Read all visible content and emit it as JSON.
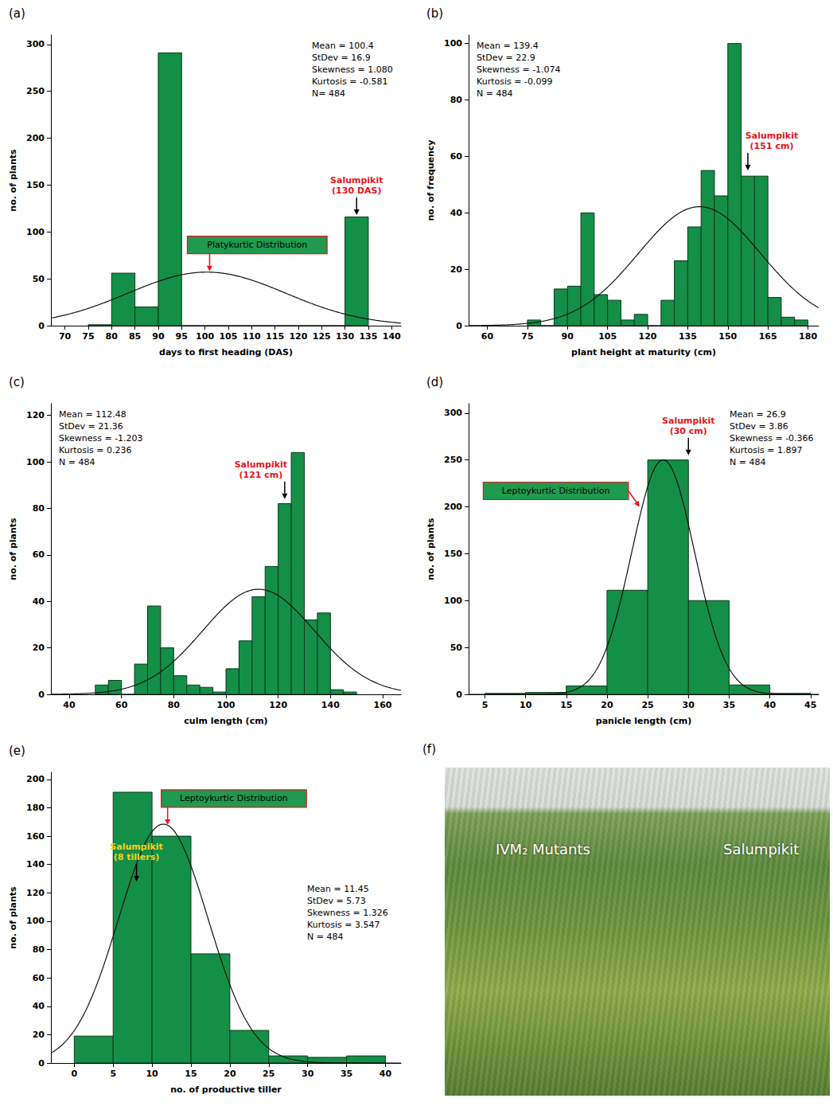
{
  "chart_data": [
    {
      "type": "histogram",
      "title": "(a)",
      "x_label": "days to first heading (DAS)",
      "y_label": "no. of plants",
      "bins": [
        75,
        80,
        85,
        90,
        95,
        100,
        105,
        110,
        115,
        120,
        125,
        130,
        135
      ],
      "values": [
        1,
        56,
        20,
        291,
        0,
        0,
        0,
        0,
        0,
        0,
        0,
        116
      ],
      "color": "#148f47",
      "xlim": [
        67,
        142
      ],
      "xticks": [
        70,
        75,
        80,
        85,
        90,
        95,
        100,
        105,
        110,
        115,
        120,
        125,
        130,
        135,
        140
      ],
      "ylim": [
        0,
        310
      ],
      "yticks": [
        0,
        50,
        100,
        150,
        200,
        250,
        300
      ],
      "stats": {
        "mean": {
          "value": 100.4,
          "label": "Mean = 100.4"
        },
        "stdev": {
          "value": 16.9,
          "label": "StDev = 16.9"
        },
        "skewness": {
          "value": 1.08,
          "label": "Skewness = 1.080"
        },
        "kurtosis": {
          "value": -0.581,
          "label": "Kurtosis = -0.581"
        },
        "n": {
          "value": 484,
          "label": "N= 484"
        }
      },
      "annotations": [
        {
          "text": "Platykurtic Distribution",
          "x": 101,
          "y": 58,
          "marker": "box",
          "color": "#e8141c"
        },
        {
          "text": "Salumpikit\n(130 DAS)",
          "x": 132.5,
          "y": 118,
          "marker": "arrow",
          "color": "#e8141c"
        }
      ]
    },
    {
      "type": "histogram",
      "title": "(b)",
      "x_label": "plant height at maturity (cm)",
      "y_label": "no. of frequency",
      "bins": [
        75,
        80,
        85,
        90,
        95,
        100,
        105,
        110,
        115,
        120,
        125,
        130,
        135,
        140,
        145,
        150,
        155,
        160,
        165,
        170,
        175,
        180
      ],
      "values": [
        2,
        0,
        13,
        14,
        40,
        11,
        9,
        2,
        4,
        0,
        9,
        23,
        35,
        55,
        46,
        100,
        53,
        53,
        10,
        3,
        2
      ],
      "color": "#148f47",
      "xlim": [
        53,
        184
      ],
      "xticks": [
        60,
        75,
        90,
        105,
        120,
        135,
        150,
        165,
        180
      ],
      "ylim": [
        0,
        103
      ],
      "yticks": [
        0,
        20,
        40,
        60,
        80,
        100
      ],
      "stats": {
        "mean": {
          "value": 139.4,
          "label": "Mean = 139.4"
        },
        "stdev": {
          "value": 22.9,
          "label": "StDev = 22.9"
        },
        "skewness": {
          "value": -1.074,
          "label": "Skewness = -1.074"
        },
        "kurtosis": {
          "value": -0.099,
          "label": "Kurtosis = -0.099"
        },
        "n": {
          "value": 484,
          "label": "N = 484"
        }
      },
      "annotations": [
        {
          "text": "Salumpikit\n(151 cm)",
          "x": 157.5,
          "y": 55,
          "marker": "arrow",
          "color": "#e8141c"
        }
      ]
    },
    {
      "type": "histogram",
      "title": "(c)",
      "x_label": "culm length (cm)",
      "y_label": "no. of plants",
      "bins": [
        50,
        55,
        60,
        65,
        70,
        75,
        80,
        85,
        90,
        95,
        100,
        105,
        110,
        115,
        120,
        125,
        130,
        135,
        140,
        145,
        150
      ],
      "values": [
        4,
        6,
        0,
        13,
        38,
        20,
        8,
        4,
        3,
        1,
        11,
        23,
        42,
        55,
        82,
        104,
        32,
        35,
        2,
        1
      ],
      "color": "#148f47",
      "xlim": [
        33,
        167
      ],
      "xticks": [
        40,
        60,
        80,
        100,
        120,
        140,
        160
      ],
      "ylim": [
        0,
        125
      ],
      "yticks": [
        0,
        20,
        40,
        60,
        80,
        100,
        120
      ],
      "stats": {
        "mean": {
          "value": 112.48,
          "label": "Mean = 112.48"
        },
        "stdev": {
          "value": 21.36,
          "label": "StDev = 21.36"
        },
        "skewness": {
          "value": -1.203,
          "label": "Skewness = -1.203"
        },
        "kurtosis": {
          "value": 0.236,
          "label": "Kurtosis = 0.236"
        },
        "n": {
          "value": 484,
          "label": "N = 484"
        }
      },
      "annotations": [
        {
          "text": "Salumpikit\n(121 cm)",
          "x": 122.5,
          "y": 84,
          "marker": "arrow",
          "color": "#e8141c"
        }
      ]
    },
    {
      "type": "histogram",
      "title": "(d)",
      "x_label": "panicle length (cm)",
      "y_label": "no. of plants",
      "bins": [
        5,
        10,
        15,
        20,
        25,
        30,
        35,
        40,
        45
      ],
      "values": [
        1,
        2,
        9,
        111,
        250,
        100,
        10,
        1
      ],
      "color": "#148f47",
      "xlim": [
        3,
        46
      ],
      "xticks": [
        5,
        10,
        15,
        20,
        25,
        30,
        35,
        40,
        45
      ],
      "ylim": [
        0,
        310
      ],
      "yticks": [
        0,
        50,
        100,
        150,
        200,
        250,
        300
      ],
      "stats": {
        "mean": {
          "value": 26.9,
          "label": "Mean = 26.9"
        },
        "stdev": {
          "value": 3.86,
          "label": "StDev = 3.86"
        },
        "skewness": {
          "value": -0.366,
          "label": "Skewness = -0.366"
        },
        "kurtosis": {
          "value": 1.897,
          "label": "Kurtosis = 1.897"
        },
        "n": {
          "value": 484,
          "label": "N = 484"
        }
      },
      "annotations": [
        {
          "text": "Leptoykurtic Distribution",
          "x": 24,
          "y": 200,
          "marker": "box",
          "color": "#e8141c"
        },
        {
          "text": "Salumpikit\n(30 cm)",
          "x": 30,
          "y": 255,
          "marker": "arrow",
          "color": "#e8141c"
        }
      ]
    },
    {
      "type": "histogram",
      "title": "(e)",
      "x_label": "no. of productive tiller",
      "y_label": "no. of plants",
      "bins": [
        0,
        5,
        10,
        15,
        20,
        25,
        30,
        35,
        40
      ],
      "values": [
        19,
        191,
        160,
        77,
        23,
        5,
        4,
        5
      ],
      "color": "#148f47",
      "xlim": [
        -3,
        42
      ],
      "xticks": [
        0,
        5,
        10,
        15,
        20,
        25,
        30,
        35,
        40
      ],
      "ylim": [
        0,
        205
      ],
      "yticks": [
        0,
        20,
        40,
        60,
        80,
        100,
        120,
        140,
        160,
        180,
        200
      ],
      "stats": {
        "mean": {
          "value": 11.45,
          "label": "Mean = 11.45"
        },
        "stdev": {
          "value": 5.73,
          "label": "StDev = 5.73"
        },
        "skewness": {
          "value": 1.326,
          "label": "Skewness = 1.326"
        },
        "kurtosis": {
          "value": 3.547,
          "label": "Kurtosis = 3.547"
        },
        "n": {
          "value": 484,
          "label": "N = 484"
        }
      },
      "annotations": [
        {
          "text": "Leptoykurtic Distribution",
          "x": 12,
          "y": 168,
          "marker": "box",
          "color": "#e8141c"
        },
        {
          "text": "Salumpikit\n(8 tillers)",
          "x": 8,
          "y": 128,
          "marker": "arrow",
          "color": "#f7d117"
        }
      ]
    },
    {
      "type": "photo",
      "title": "(f)",
      "annotations": [
        {
          "text": "IVM₂ Mutants"
        },
        {
          "text": "Salumpikit"
        }
      ]
    }
  ]
}
